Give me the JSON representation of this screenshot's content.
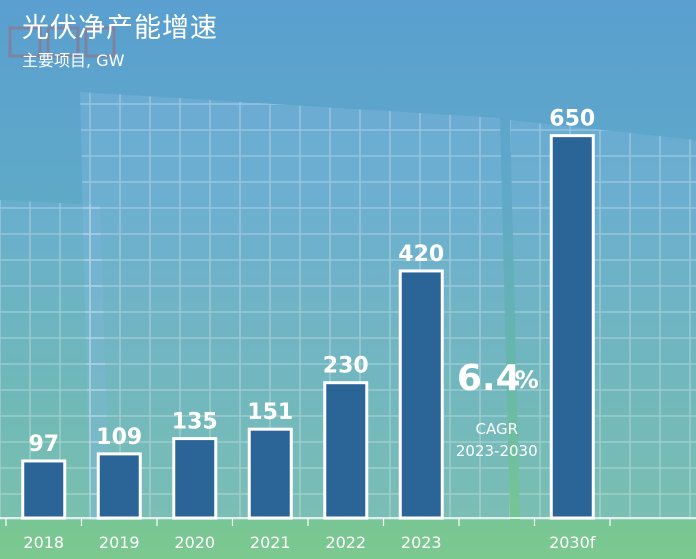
{
  "header": {
    "title": "光伏净产能增速",
    "subtitle": "主要项目, GW"
  },
  "colors": {
    "bar_fill": "#2b6496",
    "bar_stroke": "#ffffff",
    "axis": "#ffffff"
  },
  "chart_data": {
    "type": "bar",
    "categories": [
      "2018",
      "2019",
      "2020",
      "2021",
      "2022",
      "2023",
      "",
      "2030f"
    ],
    "values": [
      97,
      109,
      135,
      151,
      230,
      420,
      null,
      650
    ],
    "data_labels": [
      "97",
      "109",
      "135",
      "151",
      "230",
      "420",
      "",
      "650"
    ],
    "title": "光伏净产能增速",
    "subtitle": "主要项目, GW",
    "xlabel": "",
    "ylabel": "",
    "ylim": [
      0,
      680
    ],
    "grid": false,
    "legend": "none",
    "annotation": {
      "value": "6.4",
      "unit": "%",
      "label": "CAGR",
      "period": "2023-2030"
    }
  }
}
